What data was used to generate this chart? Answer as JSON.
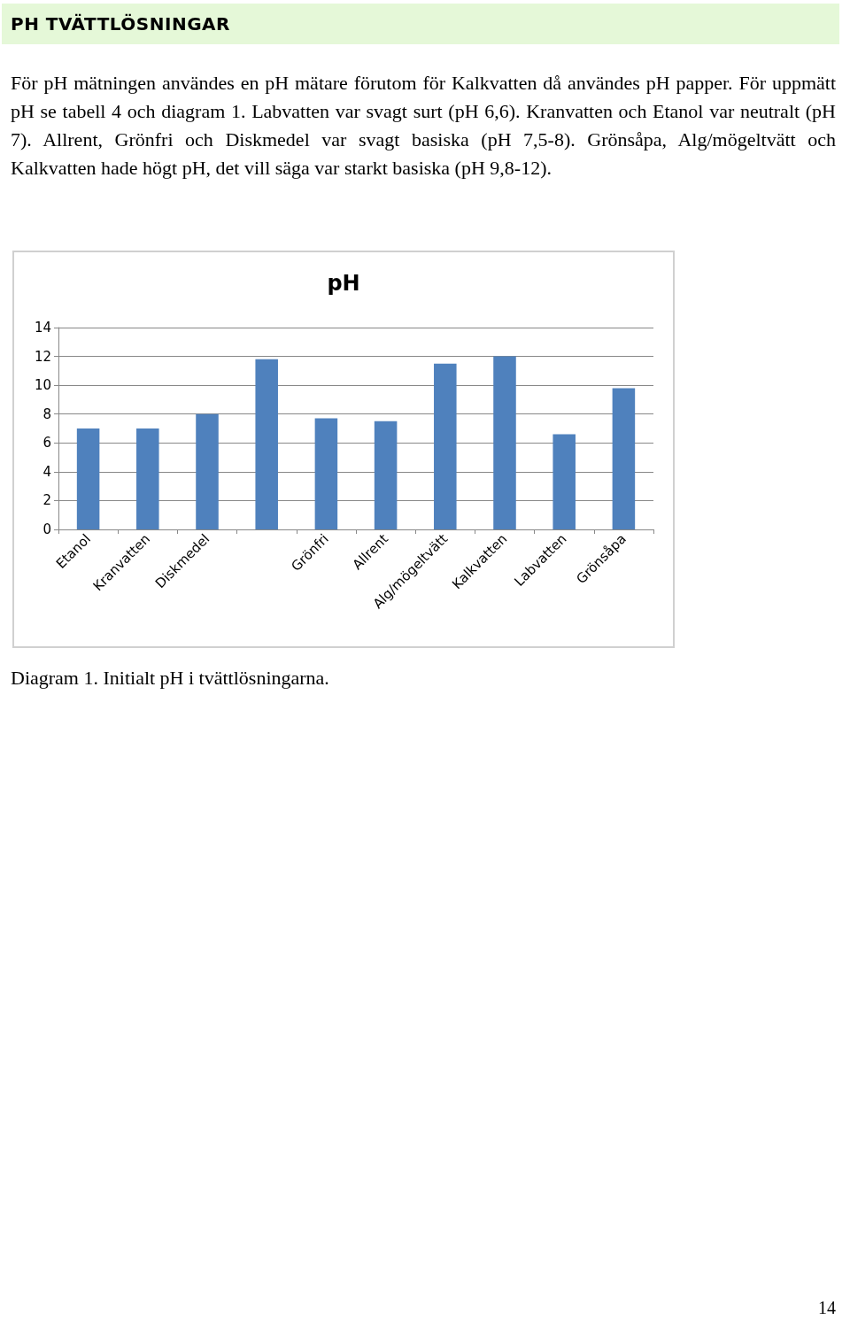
{
  "chart_data": {
    "type": "bar",
    "title": "pH",
    "categories": [
      "Etanol",
      "Kranvatten",
      "Diskmedel",
      null,
      "Grönfri",
      "Allrent",
      "Alg/mögeltvätt",
      "Kalkvatten",
      "Labvatten",
      "Grönsåpa"
    ],
    "values": [
      7,
      7,
      8,
      11.8,
      7.7,
      7.5,
      11.5,
      12,
      6.6,
      9.8
    ],
    "color": "#4f81bd",
    "ylim": [
      0,
      14
    ],
    "yticks": [
      0,
      2,
      4,
      6,
      8,
      10,
      12,
      14
    ],
    "grid": "y",
    "annotations": [
      "PH TVÄTTLÖSNINGAR",
      "För pH mätningen användes en pH mätare förutom för Kalkvatten då användes pH papper. För uppmätt pH se tabell 4 och diagram 1. Labvatten var svagt surt (pH 6,6). Kranvatten och Etanol var neutralt (pH 7). Allrent, Grönfri och Diskmedel var svagt basiska (pH 7,5-8). Grönsåpa, Alg/mögeltvätt och Kalkvatten hade högt pH, det vill säga var starkt basiska (pH 9,8-12).",
      "Diagram 1. Initialt pH i tvättlösningarna.",
      "14"
    ]
  }
}
